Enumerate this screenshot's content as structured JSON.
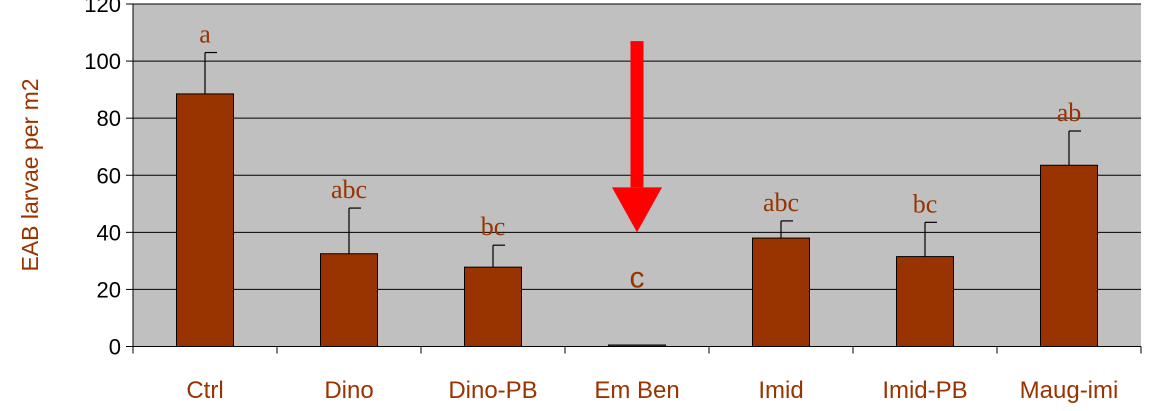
{
  "colors": {
    "plot_background": "#c0c0c0",
    "bar": "#993300",
    "label_text": "#993300",
    "arrow": "#ff0000",
    "axis": "#000000"
  },
  "chart_data": {
    "type": "bar",
    "title": "",
    "xlabel": "",
    "ylabel": "EAB larvae per m2",
    "ylim": [
      0,
      120
    ],
    "yticks": [
      "0",
      "20",
      "40",
      "60",
      "80",
      "100",
      "120"
    ],
    "grid": true,
    "legend": "none",
    "categories": [
      "Ctrl",
      "Dino",
      "Dino-PB",
      "Em Ben",
      "Imid",
      "Imid-PB",
      "Maug-imi"
    ],
    "values": [
      88.5,
      32.5,
      27.8,
      0.5,
      38,
      31.5,
      63.5
    ],
    "error_upper": [
      103,
      48.5,
      35.5,
      0.5,
      44,
      43.5,
      75.5
    ],
    "significance_letters": [
      "a",
      "abc",
      "bc",
      "c",
      "abc",
      "bc",
      "ab"
    ],
    "annotation": {
      "type": "arrow",
      "category": "Em Ben",
      "from_y": 107,
      "to_y": 40
    }
  }
}
